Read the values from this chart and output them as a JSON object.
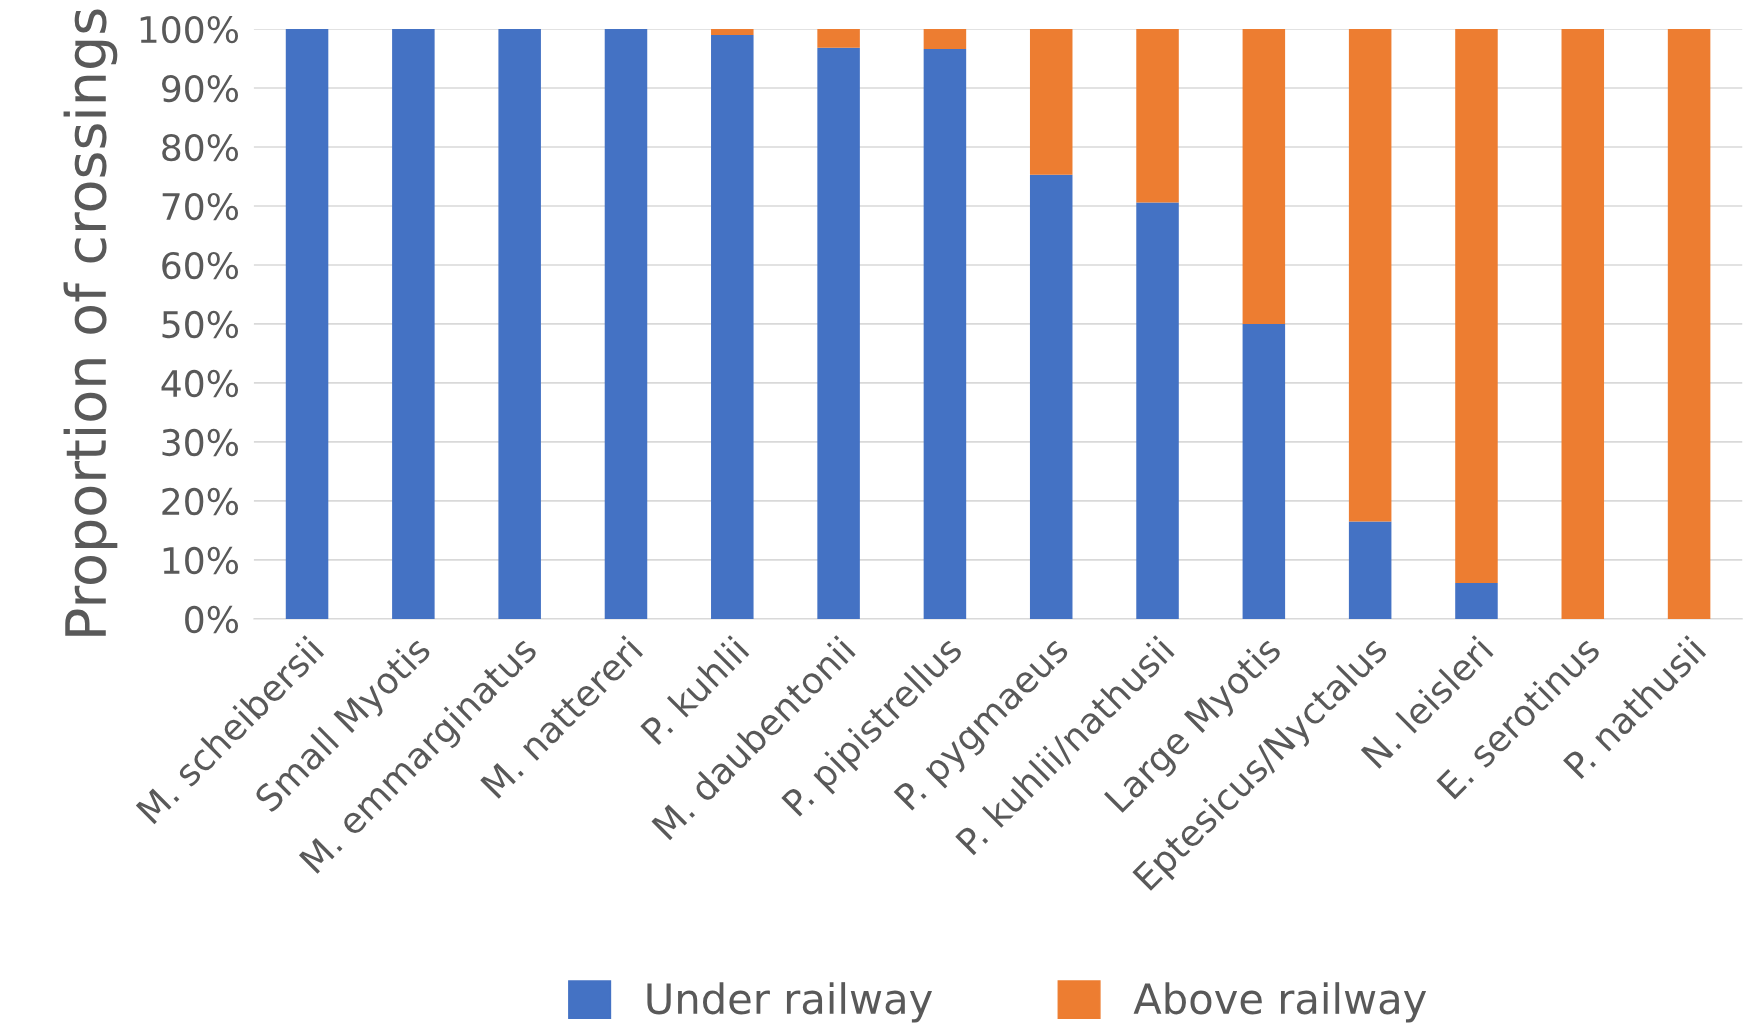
{
  "chart_data": {
    "type": "bar",
    "stacked": true,
    "ylabel": "Proportion of crossings",
    "categories": [
      "M. scheibersii",
      "Small Myotis",
      "M. emmarginatus",
      "M. nattereri",
      "P. kuhlii",
      "M. daubentonii",
      "P. pipistrellus",
      "P. pygmaeus",
      "P. kuhlii/nathusii",
      "Large Myotis",
      "Eptesicus/Nyctalus",
      "N. leisleri",
      "E. serotinus",
      "P. nathusii"
    ],
    "series": [
      {
        "name": "Under railway",
        "color": "#4472c4",
        "values": [
          100,
          100,
          100,
          100,
          99,
          96.8,
          96.6,
          75.3,
          70.6,
          50,
          16.5,
          6.1,
          0,
          0
        ]
      },
      {
        "name": "Above railway",
        "color": "#ed7d31",
        "values": [
          0,
          0,
          0,
          0,
          1,
          3.2,
          3.4,
          24.7,
          29.4,
          50,
          83.5,
          93.9,
          100,
          100
        ]
      }
    ],
    "ylim": [
      0,
      100
    ],
    "yticks": [
      {
        "value": 0,
        "label": "0%"
      },
      {
        "value": 10,
        "label": "10%"
      },
      {
        "value": 20,
        "label": "20%"
      },
      {
        "value": 30,
        "label": "30%"
      },
      {
        "value": 40,
        "label": "40%"
      },
      {
        "value": 50,
        "label": "50%"
      },
      {
        "value": 60,
        "label": "60%"
      },
      {
        "value": 70,
        "label": "70%"
      },
      {
        "value": 80,
        "label": "80%"
      },
      {
        "value": 90,
        "label": "90%"
      },
      {
        "value": 100,
        "label": "100%"
      }
    ],
    "grid": "y",
    "legend": "bottom"
  }
}
